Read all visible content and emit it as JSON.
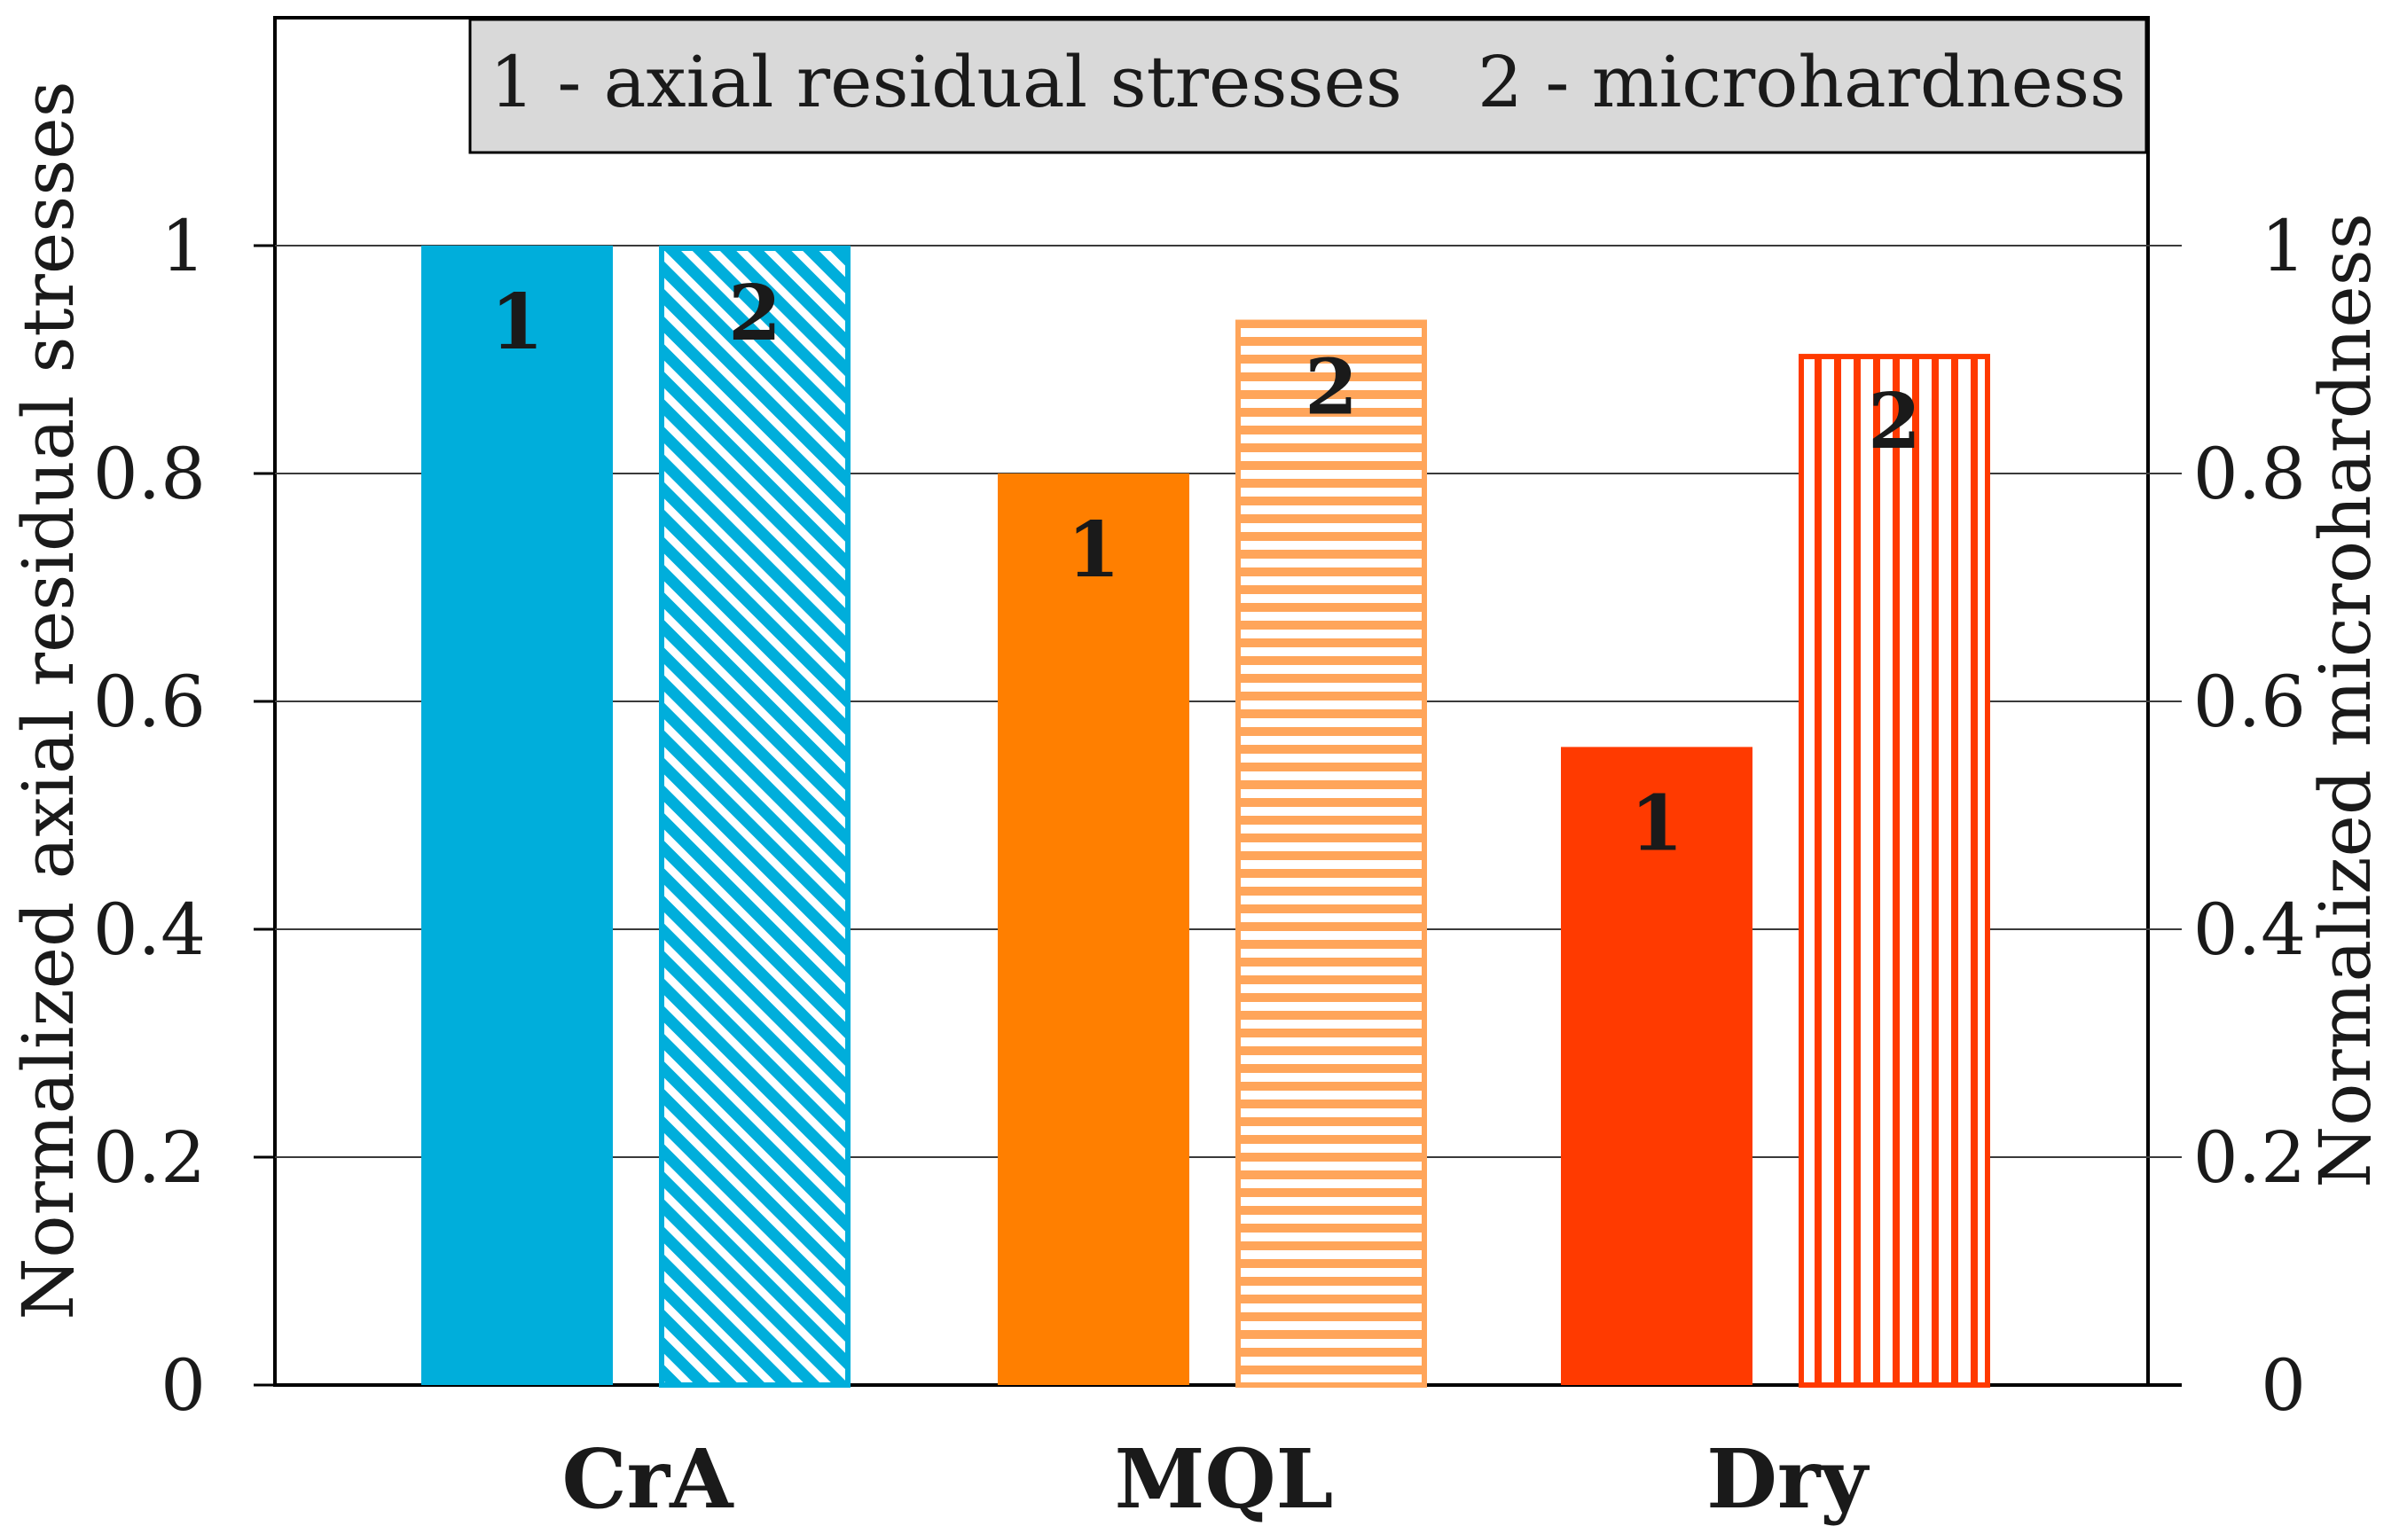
{
  "chart_data": {
    "type": "bar",
    "categories": [
      "CrA",
      "MQL",
      "Dry"
    ],
    "series": [
      {
        "name": "axial residual stresses",
        "label": "1",
        "axis": "left",
        "values": [
          1.0,
          0.8,
          0.56
        ]
      },
      {
        "name": "microhardness",
        "label": "2",
        "axis": "right",
        "values": [
          1.0,
          0.935,
          0.905
        ]
      }
    ],
    "bar_colors": {
      "CrA": {
        "fill1": "#00AEDB",
        "stroke2": "#00AEDB",
        "pattern": "diagonal"
      },
      "MQL": {
        "fill1": "#FF7F00",
        "stroke2": "#FFA55A",
        "pattern": "horizontal"
      },
      "Dry": {
        "fill1": "#FF3A00",
        "stroke2": "#FF3A00",
        "pattern": "vertical"
      }
    },
    "ylabel_left": "Normalized axial residual stresses",
    "ylabel_right": "Normalized microhardness",
    "ylim": [
      0,
      1.2
    ],
    "yticks": [
      0,
      0.2,
      0.4,
      0.6,
      0.8,
      1
    ],
    "yticklabels": [
      "0",
      "0.2",
      "0.4",
      "0.6",
      "0.8",
      "1"
    ],
    "grid": true,
    "legend": {
      "position": "top-right",
      "entries": [
        "1 - axial residual stresses",
        "2 - microhardness"
      ],
      "background": "#D9D9D9"
    }
  }
}
